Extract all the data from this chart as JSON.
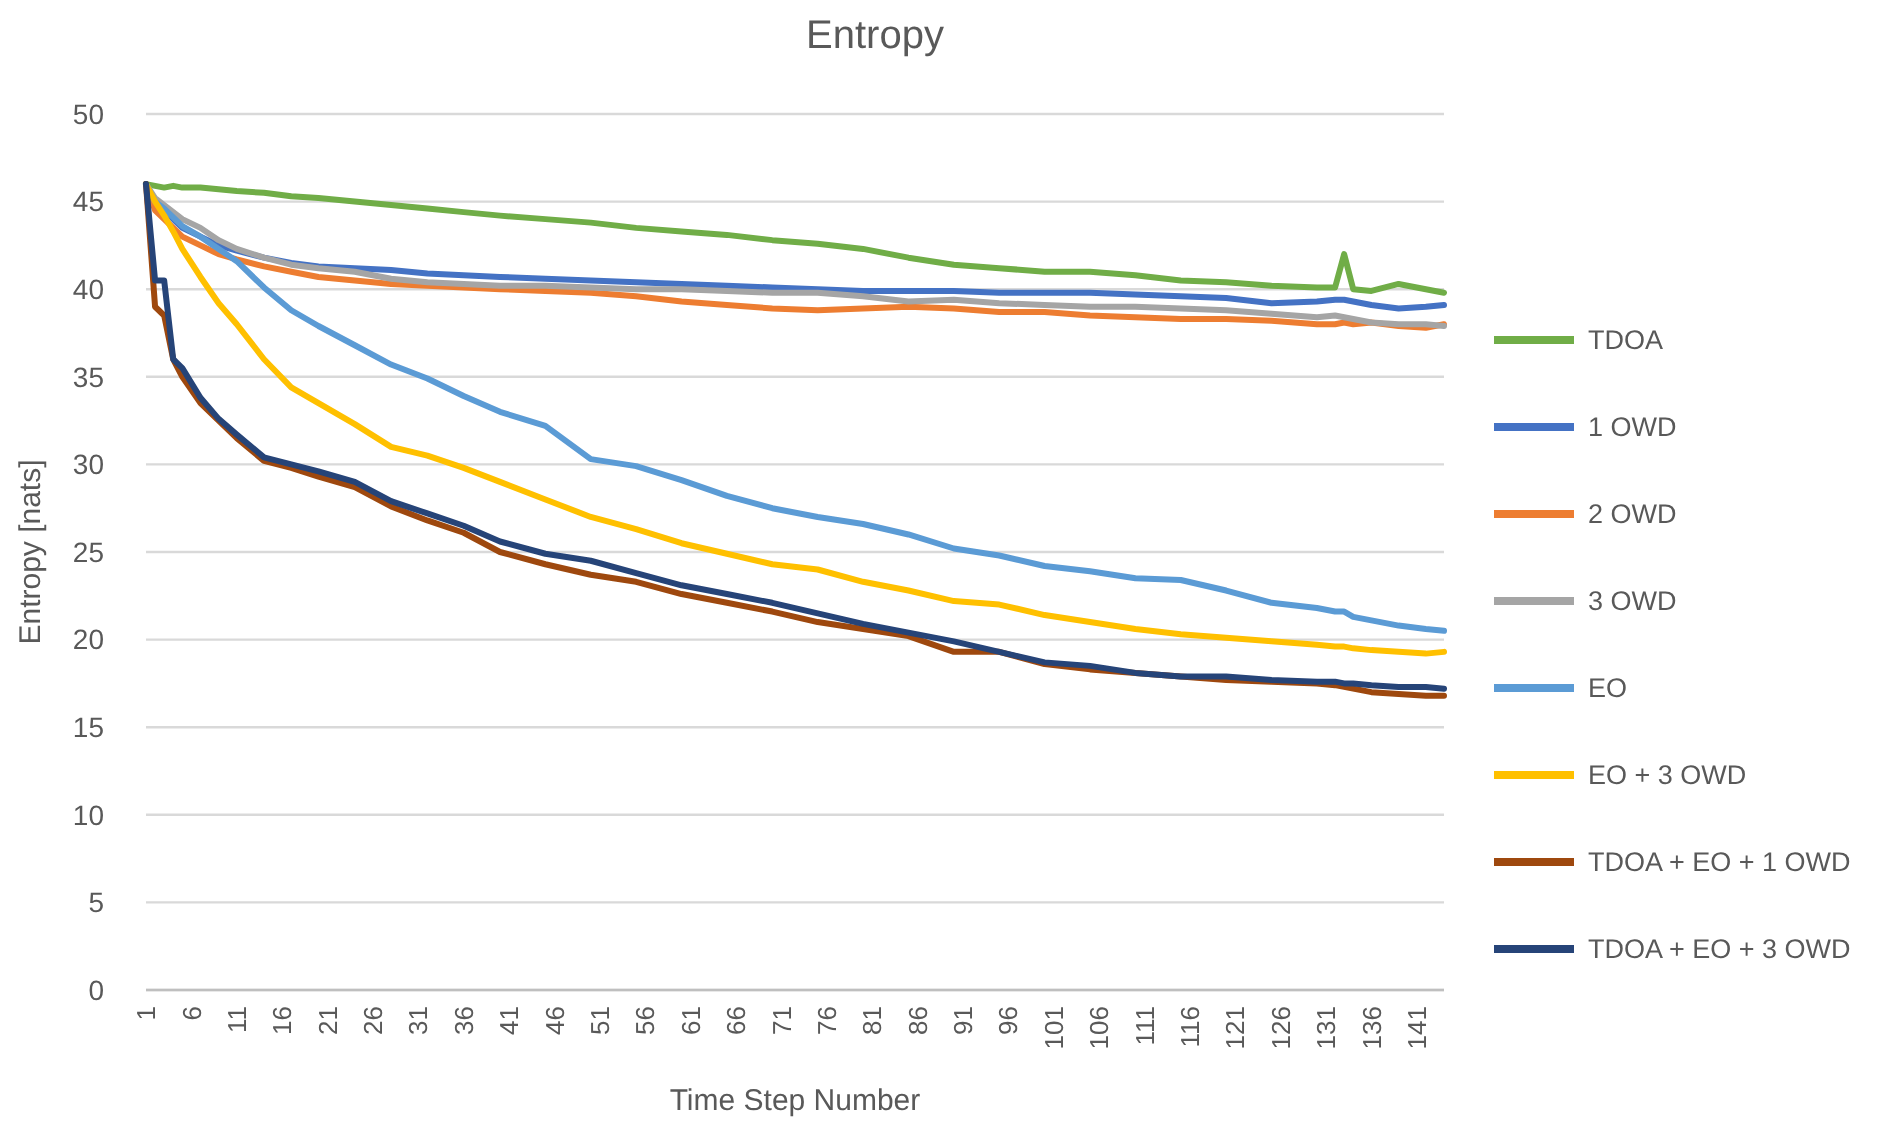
{
  "chart_data": {
    "type": "line",
    "title": "Entropy",
    "xlabel": "Time Step Number",
    "ylabel": "Entropy [nats]",
    "x": [
      1,
      2,
      3,
      4,
      5,
      7,
      9,
      11,
      14,
      17,
      20,
      24,
      28,
      32,
      36,
      40,
      45,
      50,
      55,
      60,
      65,
      70,
      75,
      80,
      85,
      90,
      95,
      100,
      105,
      110,
      115,
      120,
      125,
      130,
      132,
      133,
      134,
      136,
      139,
      142,
      144
    ],
    "xlim": [
      1,
      144
    ],
    "xticks": [
      1,
      6,
      11,
      16,
      21,
      26,
      31,
      36,
      41,
      46,
      51,
      56,
      61,
      66,
      71,
      76,
      81,
      86,
      91,
      96,
      101,
      106,
      111,
      116,
      121,
      126,
      131,
      136,
      141
    ],
    "ylim": [
      0,
      50
    ],
    "yticks": [
      0,
      5,
      10,
      15,
      20,
      25,
      30,
      35,
      40,
      45,
      50
    ],
    "grid": "y",
    "legend": "right",
    "marker": "none",
    "line_style": "solid",
    "series": [
      {
        "name": "TDOA",
        "color": "#70ad47",
        "values": [
          46,
          45.9,
          45.8,
          45.9,
          45.8,
          45.8,
          45.7,
          45.6,
          45.5,
          45.3,
          45.2,
          45.0,
          44.8,
          44.6,
          44.4,
          44.2,
          44.0,
          43.8,
          43.5,
          43.3,
          43.1,
          42.8,
          42.6,
          42.3,
          41.8,
          41.4,
          41.2,
          41.0,
          41.0,
          40.8,
          40.5,
          40.4,
          40.2,
          40.1,
          40.1,
          42.0,
          40.0,
          39.9,
          40.3,
          40.0,
          39.8
        ]
      },
      {
        "name": "1 OWD",
        "color": "#4472c4",
        "values": [
          46,
          45,
          44.5,
          44,
          43.5,
          43,
          42.5,
          42.2,
          41.8,
          41.5,
          41.3,
          41.2,
          41.1,
          40.9,
          40.8,
          40.7,
          40.6,
          40.5,
          40.4,
          40.3,
          40.2,
          40.1,
          40.0,
          39.9,
          39.9,
          39.9,
          39.8,
          39.8,
          39.8,
          39.7,
          39.6,
          39.5,
          39.2,
          39.3,
          39.4,
          39.4,
          39.3,
          39.1,
          38.9,
          39.0,
          39.1
        ]
      },
      {
        "name": "2 OWD",
        "color": "#ed7d31",
        "values": [
          46,
          44.5,
          44,
          43.5,
          43,
          42.5,
          42,
          41.7,
          41.3,
          41,
          40.7,
          40.5,
          40.3,
          40.2,
          40.1,
          40.0,
          39.9,
          39.8,
          39.6,
          39.3,
          39.1,
          38.9,
          38.8,
          38.9,
          39.0,
          38.9,
          38.7,
          38.7,
          38.5,
          38.4,
          38.3,
          38.3,
          38.2,
          38.0,
          38.0,
          38.1,
          38.0,
          38.1,
          37.9,
          37.8,
          38.0
        ]
      },
      {
        "name": "3 OWD",
        "color": "#a5a5a5",
        "values": [
          46,
          45.2,
          44.8,
          44.4,
          44,
          43.5,
          42.8,
          42.3,
          41.8,
          41.4,
          41.2,
          41.0,
          40.6,
          40.4,
          40.3,
          40.2,
          40.2,
          40.1,
          40.0,
          40.0,
          39.9,
          39.8,
          39.8,
          39.6,
          39.3,
          39.4,
          39.2,
          39.1,
          39.0,
          39.0,
          38.9,
          38.8,
          38.6,
          38.4,
          38.5,
          38.4,
          38.3,
          38.1,
          38.0,
          38.0,
          37.9
        ]
      },
      {
        "name": "EO",
        "color": "#5b9bd5",
        "values": [
          46,
          45,
          44.6,
          44.1,
          43.6,
          43.0,
          42.3,
          41.6,
          40.1,
          38.8,
          37.9,
          36.8,
          35.7,
          34.9,
          33.9,
          33.0,
          32.2,
          30.3,
          29.9,
          29.1,
          28.2,
          27.5,
          27.0,
          26.6,
          26.0,
          25.2,
          24.8,
          24.2,
          23.9,
          23.5,
          23.4,
          22.8,
          22.1,
          21.8,
          21.6,
          21.6,
          21.3,
          21.1,
          20.8,
          20.6,
          20.5
        ]
      },
      {
        "name": "EO + 3 OWD",
        "color": "#ffc000",
        "values": [
          46,
          45,
          44.2,
          43.3,
          42.3,
          40.7,
          39.2,
          38.0,
          36.0,
          34.4,
          33.5,
          32.3,
          31.0,
          30.5,
          29.8,
          29.0,
          28.0,
          27.0,
          26.3,
          25.5,
          24.9,
          24.3,
          24.0,
          23.3,
          22.8,
          22.2,
          22.0,
          21.4,
          21.0,
          20.6,
          20.3,
          20.1,
          19.9,
          19.7,
          19.6,
          19.6,
          19.5,
          19.4,
          19.3,
          19.2,
          19.3
        ]
      },
      {
        "name": "TDOA + EO + 1 OWD",
        "color": "#9e480e",
        "values": [
          46,
          39,
          38.5,
          36,
          35,
          33.5,
          32.5,
          31.5,
          30.2,
          29.8,
          29.3,
          28.7,
          27.6,
          26.8,
          26.1,
          25.0,
          24.3,
          23.7,
          23.3,
          22.6,
          22.1,
          21.6,
          21.0,
          20.6,
          20.2,
          19.3,
          19.3,
          18.6,
          18.3,
          18.1,
          17.9,
          17.7,
          17.6,
          17.5,
          17.4,
          17.3,
          17.2,
          17.0,
          16.9,
          16.8,
          16.8
        ]
      },
      {
        "name": "TDOA + EO + 3 OWD",
        "color": "#264478",
        "values": [
          46,
          40.5,
          40.5,
          36,
          35.5,
          33.8,
          32.6,
          31.7,
          30.4,
          30.0,
          29.6,
          29.0,
          27.9,
          27.2,
          26.5,
          25.6,
          24.9,
          24.5,
          23.8,
          23.1,
          22.6,
          22.1,
          21.5,
          20.9,
          20.4,
          19.9,
          19.3,
          18.7,
          18.5,
          18.1,
          17.9,
          17.9,
          17.7,
          17.6,
          17.6,
          17.5,
          17.5,
          17.4,
          17.3,
          17.3,
          17.2
        ]
      }
    ]
  }
}
